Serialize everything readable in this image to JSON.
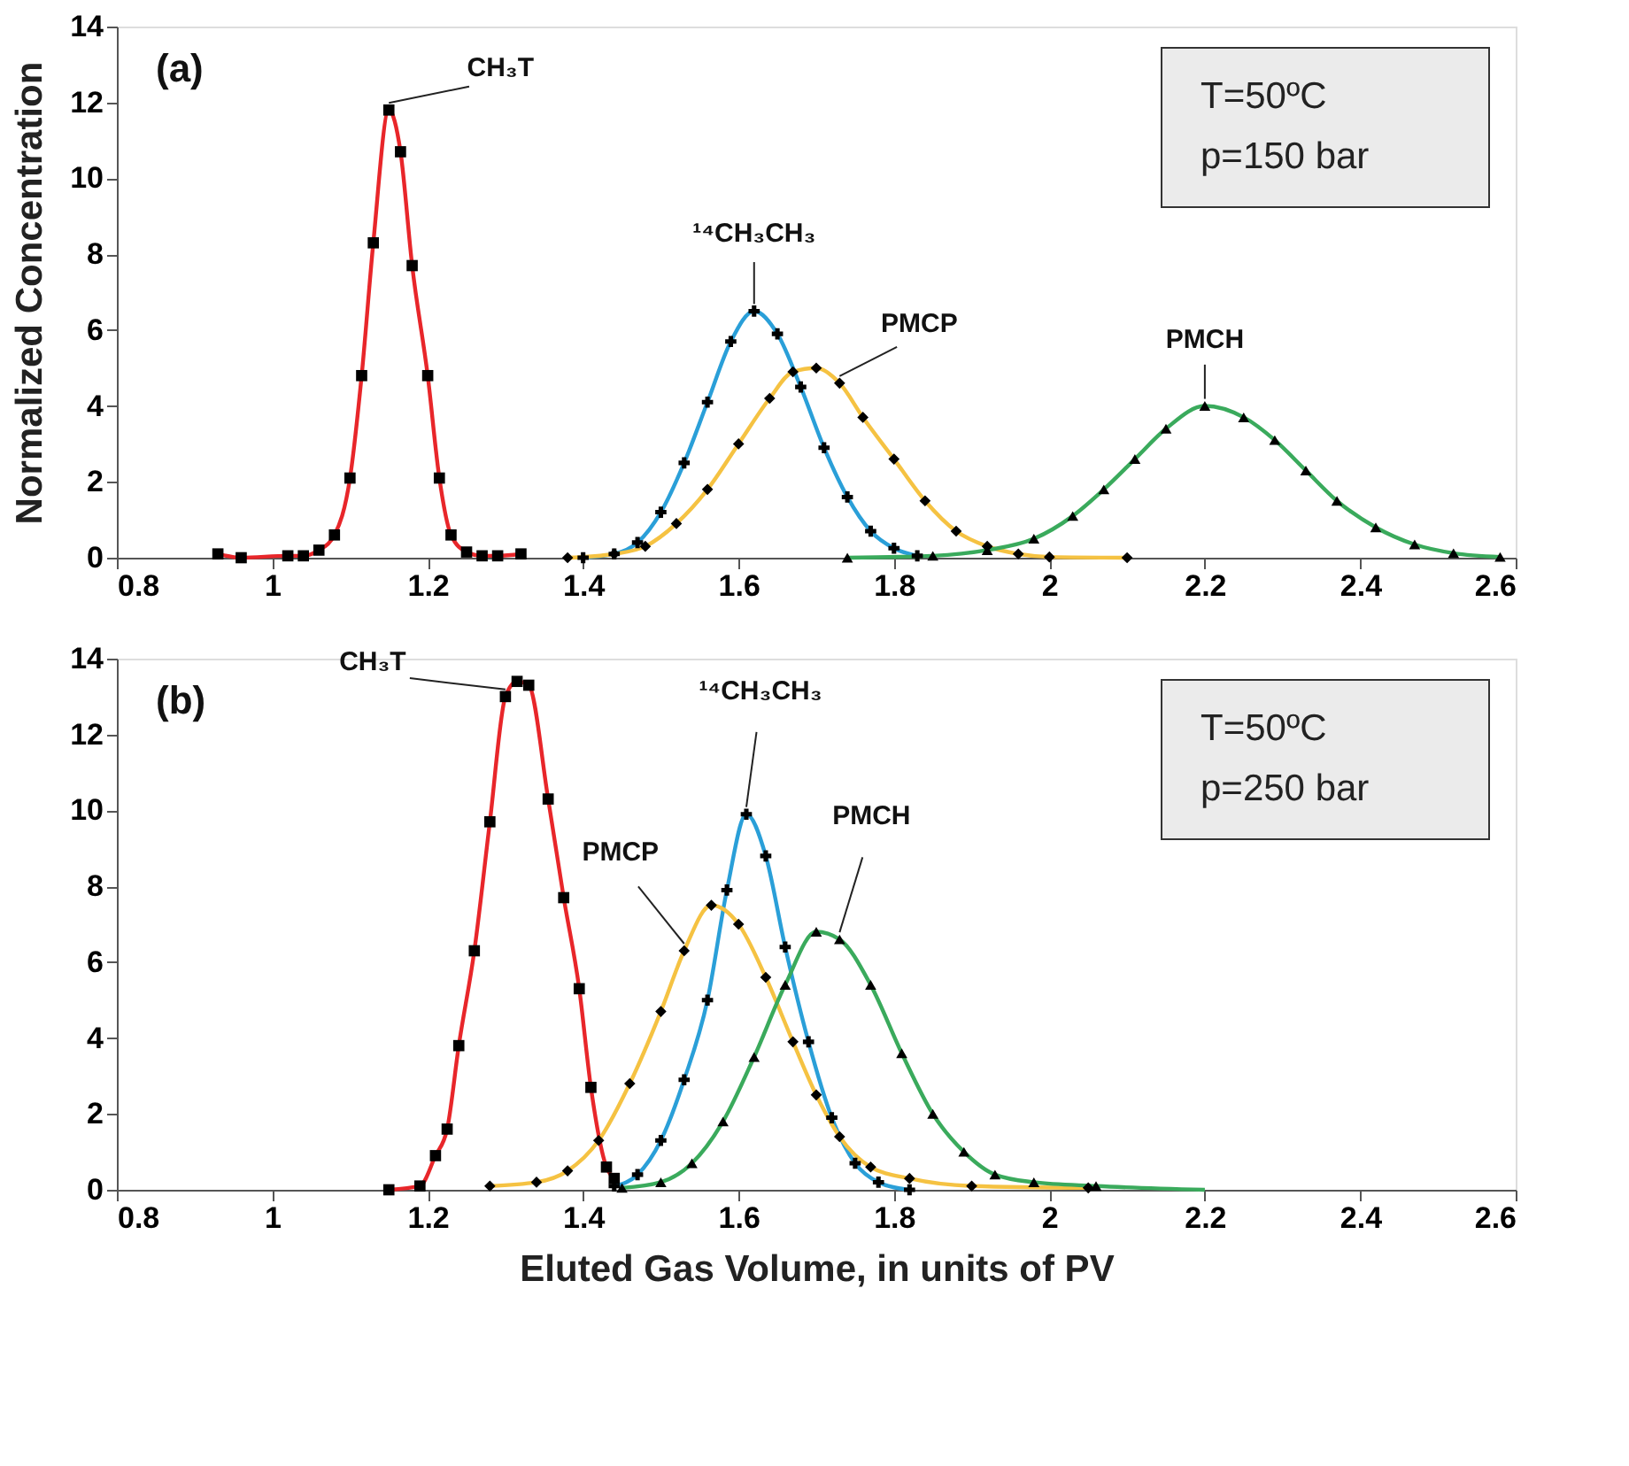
{
  "chart_data": [
    {
      "type": "line",
      "title": "(a)",
      "ylabel": "Normalized Concentration",
      "xlim": [
        0.8,
        2.6
      ],
      "xticks": [
        0.8,
        1,
        1.2,
        1.4,
        1.6,
        1.8,
        2,
        2.2,
        2.4,
        2.6
      ],
      "ylim": [
        0,
        14
      ],
      "yticks": [
        0,
        2,
        4,
        6,
        8,
        10,
        12,
        14
      ],
      "grid": false,
      "series": [
        {
          "color": "#e8262a",
          "line_style": "solid",
          "x": [
            0.93,
            0.96,
            1.02,
            1.04,
            1.06,
            1.08,
            1.1,
            1.115,
            1.13,
            1.15,
            1.165,
            1.18,
            1.2,
            1.215,
            1.23,
            1.25,
            1.27,
            1.29,
            1.32
          ],
          "values": [
            0.1,
            0,
            0.05,
            0.05,
            0.2,
            0.6,
            2.1,
            4.8,
            8.3,
            11.8,
            10.7,
            7.7,
            4.8,
            2.1,
            0.6,
            0.15,
            0.05,
            0.05,
            0.1
          ]
        },
        {
          "type": "scatter",
          "color": "#000000",
          "marker": "square",
          "x": [
            0.93,
            0.96,
            1.02,
            1.04,
            1.06,
            1.08,
            1.1,
            1.115,
            1.13,
            1.15,
            1.165,
            1.18,
            1.2,
            1.215,
            1.23,
            1.25,
            1.27,
            1.29,
            1.32
          ],
          "values": [
            0.1,
            0,
            0.05,
            0.05,
            0.2,
            0.6,
            2.1,
            4.8,
            8.3,
            11.8,
            10.7,
            7.7,
            4.8,
            2.1,
            0.6,
            0.15,
            0.05,
            0.05,
            0.1
          ]
        },
        {
          "color": "#2a9fd8",
          "line_style": "solid",
          "x": [
            1.4,
            1.44,
            1.47,
            1.5,
            1.53,
            1.56,
            1.59,
            1.62,
            1.65,
            1.68,
            1.71,
            1.74,
            1.77,
            1.8,
            1.83
          ],
          "values": [
            0,
            0.1,
            0.4,
            1.2,
            2.5,
            4.1,
            5.7,
            6.5,
            5.9,
            4.5,
            2.9,
            1.6,
            0.7,
            0.25,
            0.05
          ]
        },
        {
          "type": "scatter",
          "color": "#000000",
          "marker": "cross",
          "x": [
            1.4,
            1.44,
            1.47,
            1.5,
            1.53,
            1.56,
            1.59,
            1.62,
            1.65,
            1.68,
            1.71,
            1.74,
            1.77,
            1.8,
            1.83
          ],
          "values": [
            0,
            0.1,
            0.4,
            1.2,
            2.5,
            4.1,
            5.7,
            6.5,
            5.9,
            4.5,
            2.9,
            1.6,
            0.7,
            0.25,
            0.05
          ]
        },
        {
          "color": "#f5c242",
          "line_style": "solid",
          "x": [
            1.38,
            1.44,
            1.48,
            1.52,
            1.56,
            1.6,
            1.64,
            1.67,
            1.7,
            1.73,
            1.76,
            1.8,
            1.84,
            1.88,
            1.92,
            1.96,
            2.0,
            2.1
          ],
          "values": [
            0,
            0.1,
            0.3,
            0.9,
            1.8,
            3.0,
            4.2,
            4.9,
            5.0,
            4.6,
            3.7,
            2.6,
            1.5,
            0.7,
            0.3,
            0.1,
            0.02,
            0
          ]
        },
        {
          "type": "scatter",
          "color": "#000000",
          "marker": "diamond",
          "x": [
            1.38,
            1.44,
            1.48,
            1.52,
            1.56,
            1.6,
            1.64,
            1.67,
            1.7,
            1.73,
            1.76,
            1.8,
            1.84,
            1.88,
            1.92,
            1.96,
            2.0,
            2.1
          ],
          "values": [
            0,
            0.1,
            0.3,
            0.9,
            1.8,
            3.0,
            4.2,
            4.9,
            5.0,
            4.6,
            3.7,
            2.6,
            1.5,
            0.7,
            0.3,
            0.1,
            0.02,
            0
          ]
        },
        {
          "color": "#3aaa5c",
          "line_style": "solid",
          "x": [
            1.74,
            1.85,
            1.92,
            1.98,
            2.03,
            2.07,
            2.11,
            2.15,
            2.2,
            2.25,
            2.29,
            2.33,
            2.37,
            2.42,
            2.47,
            2.52,
            2.58
          ],
          "values": [
            0,
            0.05,
            0.2,
            0.5,
            1.1,
            1.8,
            2.6,
            3.4,
            4.0,
            3.7,
            3.1,
            2.3,
            1.5,
            0.8,
            0.35,
            0.12,
            0.02
          ]
        },
        {
          "type": "scatter",
          "color": "#000000",
          "marker": "triangle",
          "x": [
            1.74,
            1.85,
            1.92,
            1.98,
            2.03,
            2.07,
            2.11,
            2.15,
            2.2,
            2.25,
            2.29,
            2.33,
            2.37,
            2.42,
            2.47,
            2.52,
            2.58
          ],
          "values": [
            0,
            0.05,
            0.2,
            0.5,
            1.1,
            1.8,
            2.6,
            3.4,
            4.0,
            3.7,
            3.1,
            2.3,
            1.5,
            0.8,
            0.35,
            0.12,
            0.02
          ]
        }
      ],
      "annotations": [
        {
          "text": "CH₃T",
          "x": 1.15,
          "y": 11.8
        },
        {
          "text": "¹⁴CH₃CH₃",
          "x": 1.62,
          "y": 6.5
        },
        {
          "text": "PMCP",
          "x": 1.73,
          "y": 4.6
        },
        {
          "text": "PMCH",
          "x": 2.2,
          "y": 4.0
        },
        "T=50ºC",
        "p=150 bar"
      ]
    },
    {
      "type": "line",
      "title": "(b)",
      "xlabel": "Eluted Gas Volume, in units of PV",
      "xlim": [
        0.8,
        2.6
      ],
      "xticks": [
        0.8,
        1,
        1.2,
        1.4,
        1.6,
        1.8,
        2,
        2.2,
        2.4,
        2.6
      ],
      "ylim": [
        0,
        14
      ],
      "yticks": [
        0,
        2,
        4,
        6,
        8,
        10,
        12,
        14
      ],
      "grid": false,
      "series": [
        {
          "color": "#e8262a",
          "line_style": "solid",
          "x": [
            1.15,
            1.19,
            1.21,
            1.225,
            1.24,
            1.26,
            1.28,
            1.3,
            1.315,
            1.33,
            1.355,
            1.375,
            1.395,
            1.41,
            1.43,
            1.44
          ],
          "values": [
            0,
            0.1,
            0.9,
            1.6,
            3.8,
            6.3,
            9.7,
            13.0,
            13.4,
            13.3,
            10.3,
            7.7,
            5.3,
            2.7,
            0.6,
            0.3
          ]
        },
        {
          "type": "scatter",
          "color": "#000000",
          "marker": "square",
          "x": [
            1.15,
            1.19,
            1.21,
            1.225,
            1.24,
            1.26,
            1.28,
            1.3,
            1.315,
            1.33,
            1.355,
            1.375,
            1.395,
            1.41,
            1.43,
            1.44
          ],
          "values": [
            0,
            0.1,
            0.9,
            1.6,
            3.8,
            6.3,
            9.7,
            13.0,
            13.4,
            13.3,
            10.3,
            7.7,
            5.3,
            2.7,
            0.6,
            0.3
          ]
        },
        {
          "color": "#2a9fd8",
          "line_style": "solid",
          "x": [
            1.44,
            1.47,
            1.5,
            1.53,
            1.56,
            1.585,
            1.61,
            1.635,
            1.66,
            1.69,
            1.72,
            1.75,
            1.78,
            1.82
          ],
          "values": [
            0.1,
            0.4,
            1.3,
            2.9,
            5.0,
            7.9,
            9.9,
            8.8,
            6.4,
            3.9,
            1.9,
            0.7,
            0.2,
            0
          ]
        },
        {
          "type": "scatter",
          "color": "#000000",
          "marker": "cross",
          "x": [
            1.44,
            1.47,
            1.5,
            1.53,
            1.56,
            1.585,
            1.61,
            1.635,
            1.66,
            1.69,
            1.72,
            1.75,
            1.78,
            1.82
          ],
          "values": [
            0.1,
            0.4,
            1.3,
            2.9,
            5.0,
            7.9,
            9.9,
            8.8,
            6.4,
            3.9,
            1.9,
            0.7,
            0.2,
            0
          ]
        },
        {
          "color": "#f5c242",
          "line_style": "solid",
          "x": [
            1.28,
            1.34,
            1.38,
            1.42,
            1.46,
            1.5,
            1.53,
            1.565,
            1.6,
            1.635,
            1.67,
            1.7,
            1.73,
            1.77,
            1.82,
            1.9,
            2.05
          ],
          "values": [
            0.1,
            0.2,
            0.5,
            1.3,
            2.8,
            4.7,
            6.3,
            7.5,
            7.0,
            5.6,
            3.9,
            2.5,
            1.4,
            0.6,
            0.3,
            0.1,
            0.05
          ]
        },
        {
          "type": "scatter",
          "color": "#000000",
          "marker": "diamond",
          "x": [
            1.28,
            1.34,
            1.38,
            1.42,
            1.46,
            1.5,
            1.53,
            1.565,
            1.6,
            1.635,
            1.67,
            1.7,
            1.73,
            1.77,
            1.82,
            1.9,
            2.05
          ],
          "values": [
            0.1,
            0.2,
            0.5,
            1.3,
            2.8,
            4.7,
            6.3,
            7.5,
            7.0,
            5.6,
            3.9,
            2.5,
            1.4,
            0.6,
            0.3,
            0.1,
            0.05
          ]
        },
        {
          "color": "#3aaa5c",
          "line_style": "solid",
          "x": [
            1.45,
            1.5,
            1.54,
            1.58,
            1.62,
            1.66,
            1.7,
            1.73,
            1.77,
            1.81,
            1.85,
            1.89,
            1.93,
            1.98,
            2.06,
            2.2
          ],
          "values": [
            0.05,
            0.2,
            0.7,
            1.8,
            3.5,
            5.4,
            6.8,
            6.6,
            5.4,
            3.6,
            2.0,
            1.0,
            0.4,
            0.2,
            0.1,
            0
          ]
        },
        {
          "type": "scatter",
          "color": "#000000",
          "marker": "triangle",
          "x": [
            1.45,
            1.5,
            1.54,
            1.58,
            1.62,
            1.66,
            1.7,
            1.73,
            1.77,
            1.81,
            1.85,
            1.89,
            1.93,
            1.98,
            2.06
          ],
          "values": [
            0.05,
            0.2,
            0.7,
            1.8,
            3.5,
            5.4,
            6.8,
            6.6,
            5.4,
            3.6,
            2.0,
            1.0,
            0.4,
            0.2,
            0.1
          ]
        }
      ],
      "annotations": [
        {
          "text": "CH₃T",
          "x": 1.3,
          "y": 13.0
        },
        {
          "text": "¹⁴CH₃CH₃",
          "x": 1.61,
          "y": 9.9
        },
        {
          "text": "PMCP",
          "x": 1.53,
          "y": 6.3
        },
        {
          "text": "PMCH",
          "x": 1.73,
          "y": 6.6
        },
        "T=50ºC",
        "p=250 bar"
      ]
    }
  ]
}
